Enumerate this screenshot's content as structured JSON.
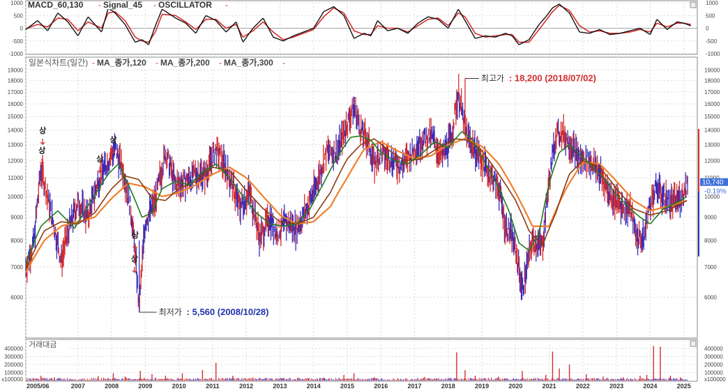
{
  "colors": {
    "up": "#d62d2d",
    "down": "#3a2bb8",
    "ma120": "#1f7a1f",
    "ma200": "#8a3a12",
    "ma300": "#f07f2a",
    "macd": "#111111",
    "signal": "#d62d2d",
    "high_label": "#d62d2d",
    "low_label": "#2233aa",
    "price_tag_bg": "#3d6fd8",
    "grid": "#d9d9d9",
    "border": "#8a8a8a"
  },
  "chart_data": [
    {
      "type": "line",
      "panel": "macd",
      "legend": [
        "MACD_60,130",
        "Signal_45",
        "OSCILLATOR"
      ],
      "ylim": [
        -1000,
        1000
      ],
      "y_ticks": [
        "1000",
        "500",
        "0",
        "-500",
        "-1000"
      ],
      "grid": true,
      "series": [
        {
          "name": "MACD_60,130",
          "x": [
            2005.45,
            2005.8,
            2006.1,
            2006.4,
            2006.7,
            2007.0,
            2007.3,
            2007.7,
            2007.9,
            2008.1,
            2008.4,
            2008.7,
            2008.9,
            2009.1,
            2009.3,
            2009.5,
            2009.9,
            2010.2,
            2010.5,
            2010.8,
            2011.1,
            2011.4,
            2011.7,
            2011.9,
            2012.2,
            2012.5,
            2012.8,
            2013.1,
            2013.4,
            2013.7,
            2014.0,
            2014.3,
            2014.6,
            2014.9,
            2015.2,
            2015.5,
            2015.7,
            2015.9,
            2016.2,
            2016.5,
            2016.8,
            2017.1,
            2017.4,
            2017.7,
            2018.0,
            2018.3,
            2018.5,
            2018.8,
            2019.1,
            2019.4,
            2019.7,
            2019.9,
            2020.1,
            2020.4,
            2020.7,
            2020.9,
            2021.1,
            2021.3,
            2021.6,
            2021.9,
            2022.2,
            2022.5,
            2022.8,
            2023.1,
            2023.4,
            2023.7,
            2024.0,
            2024.2,
            2024.5,
            2024.8,
            2025.0,
            2025.2
          ],
          "values": [
            -50,
            300,
            -100,
            600,
            250,
            -300,
            450,
            -150,
            800,
            600,
            150,
            -550,
            -450,
            -650,
            100,
            750,
            400,
            200,
            -200,
            500,
            300,
            -150,
            250,
            -550,
            0,
            400,
            -350,
            -500,
            -300,
            -150,
            0,
            650,
            850,
            500,
            -400,
            -200,
            -300,
            300,
            -100,
            0,
            -200,
            200,
            450,
            350,
            0,
            750,
            300,
            -400,
            -300,
            -350,
            -200,
            -300,
            -650,
            -450,
            150,
            450,
            800,
            950,
            600,
            -150,
            -200,
            -50,
            -250,
            -200,
            -100,
            0,
            -250,
            350,
            -50,
            250,
            200,
            100
          ]
        },
        {
          "name": "Signal_45",
          "x": [
            2005.45,
            2005.8,
            2006.1,
            2006.4,
            2006.7,
            2007.0,
            2007.3,
            2007.7,
            2007.9,
            2008.1,
            2008.4,
            2008.7,
            2008.9,
            2009.1,
            2009.3,
            2009.5,
            2009.9,
            2010.2,
            2010.5,
            2010.8,
            2011.1,
            2011.4,
            2011.7,
            2011.9,
            2012.2,
            2012.5,
            2012.8,
            2013.1,
            2013.4,
            2013.7,
            2014.0,
            2014.3,
            2014.6,
            2014.9,
            2015.2,
            2015.5,
            2015.7,
            2015.9,
            2016.2,
            2016.5,
            2016.8,
            2017.1,
            2017.4,
            2017.7,
            2018.0,
            2018.3,
            2018.5,
            2018.8,
            2019.1,
            2019.4,
            2019.7,
            2019.9,
            2020.1,
            2020.4,
            2020.7,
            2020.9,
            2021.1,
            2021.3,
            2021.6,
            2021.9,
            2022.2,
            2022.5,
            2022.8,
            2023.1,
            2023.4,
            2023.7,
            2024.0,
            2024.2,
            2024.5,
            2024.8,
            2025.0,
            2025.2
          ],
          "values": [
            -20,
            150,
            50,
            400,
            350,
            -100,
            250,
            0,
            600,
            650,
            300,
            -350,
            -500,
            -550,
            -150,
            550,
            500,
            250,
            -50,
            350,
            350,
            0,
            150,
            -350,
            -100,
            250,
            -150,
            -450,
            -350,
            -200,
            -50,
            450,
            800,
            600,
            -100,
            -250,
            -250,
            100,
            0,
            0,
            -150,
            100,
            350,
            400,
            100,
            600,
            450,
            -200,
            -350,
            -300,
            -250,
            -250,
            -550,
            -550,
            -50,
            300,
            650,
            900,
            700,
            100,
            -150,
            -100,
            -200,
            -200,
            -150,
            -50,
            -150,
            200,
            50,
            200,
            200,
            150
          ]
        }
      ]
    },
    {
      "type": "candlestick",
      "panel": "price",
      "legend": [
        "일본식차트(일간)",
        "MA_종가,120",
        "MA_종가,200",
        "MA_종가,300"
      ],
      "ylim": [
        5000,
        19500
      ],
      "y_scale": "log",
      "y_ticks": [
        "19000",
        "18000",
        "17000",
        "16000",
        "15000",
        "14000",
        "13000",
        "12000",
        "11000",
        "10000",
        "9000",
        "8000",
        "7000",
        "6000"
      ],
      "grid": true,
      "annotations": {
        "high": {
          "label": "최고가",
          "value_text": ": 18,200 (2018/07/02)",
          "x": 2018.5,
          "y": 18200
        },
        "low": {
          "label": "최저가",
          "value_text": ": 5,560 (2008/10/28)",
          "x": 2008.82,
          "y": 5560
        },
        "current": {
          "value": "10,740",
          "change": "-0.19%"
        },
        "limit_up_marker": "상",
        "limit_up_points": [
          {
            "x": 2005.95,
            "y": 13500
          },
          {
            "x": 2005.93,
            "y": 12200
          },
          {
            "x": 2007.65,
            "y": 11700
          },
          {
            "x": 2008.05,
            "y": 12900
          },
          {
            "x": 2008.7,
            "y": 7950
          },
          {
            "x": 2008.68,
            "y": 7050
          }
        ]
      },
      "series": [
        {
          "name": "일본식차트(일간)",
          "x": [
            2005.45,
            2005.7,
            2005.9,
            2006.2,
            2006.5,
            2006.75,
            2007.0,
            2007.3,
            2007.6,
            2007.9,
            2008.1,
            2008.4,
            2008.6,
            2008.82,
            2009.0,
            2009.3,
            2009.6,
            2009.9,
            2010.2,
            2010.5,
            2010.8,
            2011.1,
            2011.4,
            2011.6,
            2011.8,
            2012.1,
            2012.4,
            2012.7,
            2012.9,
            2013.2,
            2013.5,
            2013.8,
            2014.1,
            2014.4,
            2014.7,
            2015.0,
            2015.2,
            2015.4,
            2015.6,
            2015.8,
            2016.0,
            2016.3,
            2016.6,
            2016.9,
            2017.2,
            2017.5,
            2017.8,
            2018.1,
            2018.3,
            2018.5,
            2018.7,
            2018.9,
            2019.2,
            2019.5,
            2019.7,
            2019.9,
            2020.1,
            2020.2,
            2020.5,
            2020.8,
            2021.0,
            2021.2,
            2021.4,
            2021.6,
            2021.9,
            2022.2,
            2022.5,
            2022.8,
            2023.1,
            2023.4,
            2023.6,
            2023.8,
            2024.0,
            2024.2,
            2024.4,
            2024.6,
            2024.8,
            2025.0,
            2025.1
          ],
          "values": [
            7000,
            8000,
            11500,
            9200,
            7200,
            8600,
            9700,
            9000,
            10800,
            12000,
            12800,
            11000,
            9000,
            5560,
            8800,
            9800,
            12500,
            10600,
            10800,
            11200,
            11200,
            12700,
            11500,
            10500,
            9500,
            10200,
            8100,
            9000,
            8300,
            8800,
            8500,
            9400,
            10700,
            12600,
            12500,
            14500,
            15800,
            14000,
            13300,
            11800,
            12400,
            12100,
            11700,
            12400,
            13300,
            13600,
            12200,
            13500,
            17000,
            14000,
            13000,
            12400,
            11300,
            10500,
            8600,
            8200,
            7000,
            6200,
            8000,
            7800,
            10800,
            13700,
            13800,
            13200,
            12100,
            12000,
            11300,
            10100,
            9600,
            9400,
            8200,
            8000,
            9700,
            10500,
            10000,
            9700,
            9800,
            10200,
            10740
          ]
        },
        {
          "name": "MA_종가,120",
          "x": [
            2005.45,
            2005.9,
            2006.4,
            2006.9,
            2007.4,
            2007.9,
            2008.2,
            2008.5,
            2008.9,
            2009.2,
            2009.5,
            2009.9,
            2010.3,
            2010.7,
            2011.1,
            2011.5,
            2011.9,
            2012.3,
            2012.7,
            2013.1,
            2013.5,
            2013.9,
            2014.3,
            2014.7,
            2015.1,
            2015.4,
            2015.7,
            2016.0,
            2016.4,
            2016.8,
            2017.2,
            2017.6,
            2018.0,
            2018.4,
            2018.7,
            2019.0,
            2019.4,
            2019.8,
            2020.1,
            2020.4,
            2020.7,
            2021.0,
            2021.3,
            2021.6,
            2021.9,
            2022.2,
            2022.6,
            2023.0,
            2023.4,
            2023.7,
            2024.0,
            2024.4,
            2024.8,
            2025.1
          ],
          "values": [
            7100,
            8600,
            9300,
            8500,
            9800,
            11200,
            11800,
            10600,
            9000,
            9200,
            10400,
            10800,
            10600,
            11300,
            11800,
            11000,
            10000,
            9200,
            8700,
            8600,
            8700,
            9400,
            10700,
            12200,
            13500,
            13600,
            13300,
            12500,
            12000,
            11800,
            12400,
            13200,
            12800,
            13900,
            13400,
            12200,
            10800,
            9300,
            7900,
            7600,
            8300,
            10700,
            12500,
            13000,
            12400,
            11800,
            11000,
            10100,
            9400,
            9000,
            8700,
            9400,
            9700,
            10000
          ]
        },
        {
          "name": "MA_종가,200",
          "x": [
            2005.45,
            2006.0,
            2006.5,
            2007.0,
            2007.5,
            2008.0,
            2008.4,
            2008.8,
            2009.2,
            2009.6,
            2010.0,
            2010.5,
            2011.0,
            2011.5,
            2012.0,
            2012.5,
            2013.0,
            2013.5,
            2014.0,
            2014.5,
            2015.0,
            2015.4,
            2015.8,
            2016.2,
            2016.7,
            2017.2,
            2017.7,
            2018.2,
            2018.6,
            2019.0,
            2019.5,
            2020.0,
            2020.4,
            2020.8,
            2021.2,
            2021.6,
            2022.0,
            2022.5,
            2023.0,
            2023.5,
            2024.0,
            2024.5,
            2025.1
          ],
          "values": [
            6900,
            8400,
            8800,
            8700,
            9200,
            10400,
            11100,
            10900,
            9900,
            9800,
            10400,
            10800,
            11600,
            11400,
            10300,
            9400,
            8800,
            8700,
            9000,
            10200,
            12100,
            13000,
            13400,
            12700,
            12000,
            12100,
            12800,
            13400,
            13300,
            12600,
            11200,
            9800,
            8400,
            7800,
            9200,
            11200,
            12000,
            11600,
            10400,
            9400,
            9100,
            9300,
            9800
          ]
        },
        {
          "name": "MA_종가,300",
          "x": [
            2005.45,
            2006.0,
            2006.5,
            2007.0,
            2007.5,
            2008.0,
            2008.5,
            2009.0,
            2009.5,
            2010.0,
            2010.5,
            2011.0,
            2011.5,
            2012.0,
            2012.5,
            2013.0,
            2013.5,
            2014.0,
            2014.5,
            2015.0,
            2015.5,
            2016.0,
            2016.5,
            2017.0,
            2017.5,
            2018.0,
            2018.5,
            2019.0,
            2019.5,
            2020.0,
            2020.5,
            2021.0,
            2021.5,
            2022.0,
            2022.5,
            2023.0,
            2023.5,
            2024.0,
            2024.5,
            2025.1
          ],
          "values": [
            6800,
            8000,
            8600,
            8800,
            9000,
            9900,
            10700,
            10500,
            10000,
            10200,
            10600,
            11200,
            11600,
            11000,
            10000,
            9100,
            8700,
            8800,
            9500,
            11000,
            12700,
            13200,
            12600,
            12100,
            12300,
            13000,
            13400,
            12900,
            11800,
            10200,
            8600,
            8600,
            10400,
            11900,
            11800,
            10800,
            9800,
            9300,
            9500,
            9800
          ]
        }
      ]
    },
    {
      "type": "bar",
      "panel": "volume",
      "legend": [
        "거래대금"
      ],
      "ylim": [
        0,
        450000
      ],
      "y_ticks": [
        "400000",
        "300000",
        "200000",
        "100000"
      ],
      "axis_note": "x100000",
      "grid": true,
      "x_tick_labels": [
        "2005/06",
        "2007",
        "2008",
        "2009",
        "2010",
        "2011",
        "2012",
        "2013",
        "2014",
        "2015",
        "2016",
        "2017",
        "2018",
        "2019",
        "2020",
        "2021",
        "2022",
        "2023",
        "2024",
        "2025"
      ],
      "x_tick_values": [
        2005.45,
        2007.0,
        2008.0,
        2009.0,
        2010.0,
        2011.0,
        2012.0,
        2013.0,
        2014.0,
        2015.0,
        2016.0,
        2017.0,
        2018.0,
        2019.0,
        2020.0,
        2021.0,
        2022.0,
        2023.0,
        2024.0,
        2025.0
      ],
      "spikes": {
        "x": [
          2005.9,
          2006.3,
          2007.6,
          2008.05,
          2008.4,
          2008.85,
          2009.2,
          2009.6,
          2010.1,
          2010.7,
          2011.1,
          2011.6,
          2012.2,
          2013.1,
          2014.3,
          2014.9,
          2015.2,
          2015.8,
          2016.5,
          2017.3,
          2018.25,
          2018.5,
          2018.8,
          2019.5,
          2020.2,
          2020.9,
          2021.1,
          2021.3,
          2021.6,
          2022.1,
          2022.6,
          2023.2,
          2023.7,
          2023.9,
          2024.1,
          2024.3,
          2024.6,
          2024.9
        ],
        "values": [
          60000,
          40000,
          55000,
          90000,
          50000,
          120000,
          80000,
          60000,
          90000,
          130000,
          220000,
          60000,
          40000,
          30000,
          35000,
          70000,
          90000,
          40000,
          30000,
          45000,
          350000,
          130000,
          60000,
          50000,
          120000,
          70000,
          360000,
          150000,
          200000,
          80000,
          50000,
          40000,
          60000,
          70000,
          430000,
          420000,
          60000,
          40000
        ]
      }
    }
  ]
}
